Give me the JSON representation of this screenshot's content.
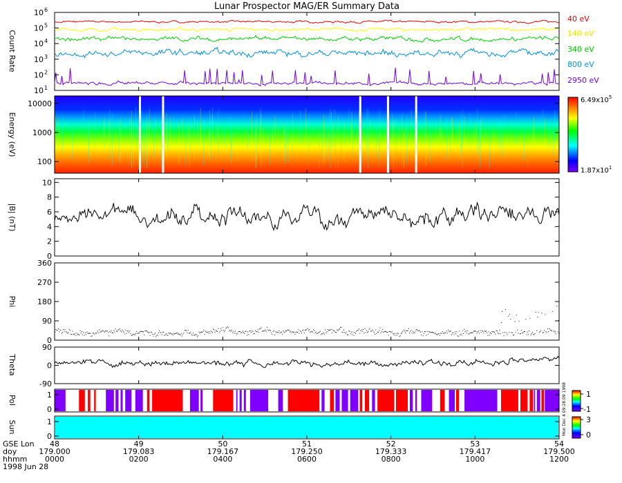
{
  "title": "Lunar Prospector MAG/ER Summary Data",
  "colors": {
    "frame": "#000000",
    "sun": "#00ffff",
    "pol_pos": "#ff0000",
    "pol_neg": "#8000ff"
  },
  "chart_data": [
    {
      "id": "count_rate",
      "type": "line",
      "ylabel": "Count Rate",
      "yscale": "log",
      "ylim": [
        10,
        1000000
      ],
      "yticks": [
        {
          "value": 10,
          "base": "10",
          "exp": "1"
        },
        {
          "value": 100,
          "base": "10",
          "exp": "2"
        },
        {
          "value": 1000,
          "base": "10",
          "exp": "3"
        },
        {
          "value": 10000,
          "base": "10",
          "exp": "4"
        },
        {
          "value": 100000,
          "base": "10",
          "exp": "5"
        },
        {
          "value": 1000000,
          "base": "10",
          "exp": "6"
        }
      ],
      "series": [
        {
          "name": "40 eV",
          "color": "#e00000",
          "level": 250000,
          "noise": 0.08,
          "spikes": 0.0
        },
        {
          "name": "140 eV",
          "color": "#ffff00",
          "level": 80000,
          "noise": 0.12,
          "spikes": 0.0
        },
        {
          "name": "340 eV",
          "color": "#00d000",
          "level": 20000,
          "noise": 0.17,
          "spikes": 0.0
        },
        {
          "name": "800 eV",
          "color": "#0090e0",
          "level": 2500,
          "noise": 0.25,
          "spikes": 0.0
        },
        {
          "name": "2950 eV",
          "color": "#7000e0",
          "level": 28,
          "noise": 0.12,
          "spikes": 1.0
        }
      ]
    },
    {
      "id": "energy",
      "type": "heatmap",
      "ylabel": "Energy (eV)",
      "yscale": "log",
      "ylim": [
        40,
        18000
      ],
      "yticks": [
        100,
        1000,
        10000
      ],
      "colorbar": {
        "max_base": "6.49x10",
        "max_exp": "5",
        "min_base": "1.87x10",
        "min_exp": "1"
      },
      "gaps_hours": [
        2.03,
        2.58,
        7.27,
        7.93,
        8.6
      ]
    },
    {
      "id": "b_magnitude",
      "type": "line",
      "ylabel": "|B| (nT)",
      "ylim": [
        0,
        10.5
      ],
      "yticks": [
        0,
        2,
        4,
        6,
        8,
        10
      ],
      "baseline": 5.5
    },
    {
      "id": "phi",
      "type": "scatter",
      "ylabel": "Phi",
      "ylim": [
        0,
        360
      ],
      "yticks": [
        0,
        90,
        180,
        270,
        360
      ],
      "baseline": 40
    },
    {
      "id": "theta",
      "type": "line",
      "ylabel": "Theta",
      "ylim": [
        -90,
        90
      ],
      "yticks": [
        -90,
        0,
        90
      ],
      "baseline": 10
    },
    {
      "id": "pol",
      "type": "heatmap",
      "ylabel": "Pol",
      "yticks": [
        "0",
        "1"
      ],
      "colorbar_ticks": [
        "1",
        "-1"
      ],
      "segments": [
        {
          "start": 0.0,
          "end": 0.26,
          "v": "neg"
        },
        {
          "start": 0.58,
          "end": 0.72,
          "v": "pos"
        },
        {
          "start": 0.79,
          "end": 0.85,
          "v": "pos"
        },
        {
          "start": 0.94,
          "end": 0.98,
          "v": "pos"
        },
        {
          "start": 1.22,
          "end": 1.41,
          "v": "neg"
        },
        {
          "start": 1.45,
          "end": 1.52,
          "v": "neg"
        },
        {
          "start": 1.57,
          "end": 1.62,
          "v": "neg"
        },
        {
          "start": 1.68,
          "end": 1.83,
          "v": "neg"
        },
        {
          "start": 1.92,
          "end": 2.1,
          "v": "neg"
        },
        {
          "start": 2.2,
          "end": 2.26,
          "v": "pos"
        },
        {
          "start": 2.32,
          "end": 3.05,
          "v": "pos"
        },
        {
          "start": 3.22,
          "end": 3.43,
          "v": "neg"
        },
        {
          "start": 3.47,
          "end": 3.52,
          "v": "neg"
        },
        {
          "start": 3.77,
          "end": 4.25,
          "v": "pos"
        },
        {
          "start": 4.32,
          "end": 4.35,
          "v": "neg"
        },
        {
          "start": 4.4,
          "end": 4.45,
          "v": "neg"
        },
        {
          "start": 4.5,
          "end": 4.55,
          "v": "neg"
        },
        {
          "start": 4.65,
          "end": 5.08,
          "v": "neg"
        },
        {
          "start": 5.32,
          "end": 5.43,
          "v": "neg"
        },
        {
          "start": 5.55,
          "end": 6.3,
          "v": "pos"
        },
        {
          "start": 6.35,
          "end": 6.42,
          "v": "neg"
        },
        {
          "start": 6.55,
          "end": 6.64,
          "v": "pos"
        },
        {
          "start": 6.68,
          "end": 6.78,
          "v": "neg"
        },
        {
          "start": 6.83,
          "end": 6.98,
          "v": "neg"
        },
        {
          "start": 7.03,
          "end": 7.22,
          "v": "neg"
        },
        {
          "start": 7.26,
          "end": 7.32,
          "v": "pos"
        },
        {
          "start": 7.38,
          "end": 7.48,
          "v": "pos"
        },
        {
          "start": 7.55,
          "end": 7.62,
          "v": "neg"
        },
        {
          "start": 7.68,
          "end": 8.08,
          "v": "pos"
        },
        {
          "start": 8.12,
          "end": 8.4,
          "v": "pos"
        },
        {
          "start": 8.45,
          "end": 8.52,
          "v": "neg"
        },
        {
          "start": 8.58,
          "end": 8.62,
          "v": "neg"
        },
        {
          "start": 8.72,
          "end": 8.98,
          "v": "neg"
        },
        {
          "start": 9.17,
          "end": 9.28,
          "v": "pos"
        },
        {
          "start": 9.38,
          "end": 9.52,
          "v": "neg"
        },
        {
          "start": 9.55,
          "end": 9.62,
          "v": "pos"
        },
        {
          "start": 9.75,
          "end": 10.53,
          "v": "neg"
        },
        {
          "start": 10.62,
          "end": 11.03,
          "v": "pos"
        },
        {
          "start": 11.08,
          "end": 11.25,
          "v": "pos"
        },
        {
          "start": 11.3,
          "end": 11.38,
          "v": "pos"
        },
        {
          "start": 11.4,
          "end": 11.43,
          "v": "neg"
        },
        {
          "start": 11.47,
          "end": 11.55,
          "v": "neg"
        },
        {
          "start": 11.58,
          "end": 11.64,
          "v": "pos"
        },
        {
          "start": 11.66,
          "end": 12.0,
          "v": "neg"
        }
      ]
    },
    {
      "id": "sun",
      "type": "heatmap",
      "ylabel": "Sun",
      "yticks": [
        "0",
        "1"
      ],
      "colorbar_ticks": [
        "3",
        "0"
      ],
      "value": 3
    }
  ],
  "x_axis": {
    "row_labels": [
      "GSE Lon",
      "doy",
      "hhmm",
      "1998 Jun 28"
    ],
    "ticks": [
      {
        "hour": 0,
        "lon": "48",
        "doy": "179.000",
        "hhmm": "0000"
      },
      {
        "hour": 2,
        "lon": "49",
        "doy": "179.083",
        "hhmm": "0200"
      },
      {
        "hour": 4,
        "lon": "50",
        "doy": "179.167",
        "hhmm": "0400"
      },
      {
        "hour": 6,
        "lon": "51",
        "doy": "179.250",
        "hhmm": "0600"
      },
      {
        "hour": 8,
        "lon": "52",
        "doy": "179.333",
        "hhmm": "0800"
      },
      {
        "hour": 10,
        "lon": "53",
        "doy": "179.417",
        "hhmm": "1000"
      },
      {
        "hour": 12,
        "lon": "54",
        "doy": "179.500",
        "hhmm": "1200"
      }
    ],
    "range_hours": [
      0,
      12
    ]
  },
  "side_note": "Mon Dec 4 09:28:09 1998"
}
